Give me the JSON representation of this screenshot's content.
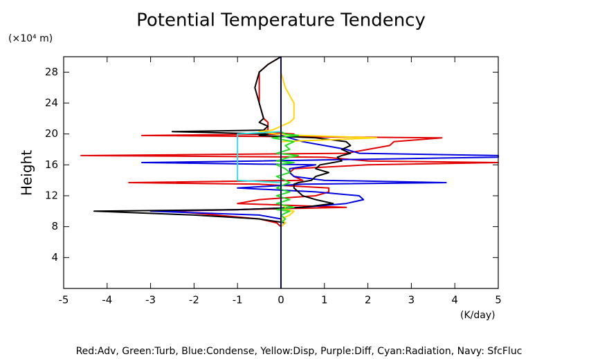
{
  "chart_data": {
    "type": "line",
    "title": "Potential Temperature Tendency",
    "y_label": "Height",
    "y_unit": "(×10⁴ m)",
    "x_unit": "(K/day)",
    "legend_text": "Red:Adv, Green:Turb, Blue:Condense, Yellow:Disp, Purple:Diff, Cyan:Radiation, Navy: SfcFluc",
    "xlim": [
      -5,
      5
    ],
    "xticks": [
      -5,
      -4,
      -3,
      -2,
      -1,
      0,
      1,
      2,
      3,
      4,
      5
    ],
    "ylim": [
      0,
      30
    ],
    "yticks": [
      4,
      8,
      12,
      16,
      20,
      24,
      28
    ],
    "y": [
      0,
      2,
      4,
      6,
      8,
      8.5,
      9,
      9.5,
      10,
      10.2,
      10.5,
      11,
      11.5,
      12,
      12.5,
      13,
      13.5,
      13.7,
      14,
      14.5,
      15,
      15.5,
      16,
      16.3,
      16.5,
      17,
      17.2,
      17.5,
      18,
      18.5,
      19,
      19.5,
      19.8,
      20,
      20.3,
      20.5,
      21,
      21.5,
      22,
      24,
      26,
      28,
      29,
      30
    ],
    "series": [
      {
        "color": "#e00000",
        "values": [
          0,
          0,
          0,
          0,
          0,
          -0.1,
          -0.5,
          -1.5,
          -2.5,
          -1,
          1.5,
          -1,
          -0.5,
          0.8,
          1.1,
          1.1,
          -0.5,
          -3.5,
          0.5,
          0.3,
          0.2,
          0.3,
          2,
          5,
          2,
          1,
          -4.6,
          1.5,
          2,
          2.5,
          2.6,
          3.7,
          -3.2,
          0.3,
          -0.5,
          -0.3,
          -0.3,
          -0.3,
          -0.4,
          -0.5,
          -0.5,
          -0.5,
          -0.3,
          0
        ]
      },
      {
        "color": "#0000dd",
        "values": [
          0,
          0,
          0,
          0,
          0,
          0,
          0,
          -0.5,
          -3,
          -1,
          0.5,
          1.5,
          1.9,
          1.8,
          0.8,
          -1,
          0.5,
          3.8,
          1,
          0.3,
          0.2,
          0.2,
          0.8,
          -3.2,
          -0.5,
          5,
          5,
          1.8,
          1.5,
          1,
          0.5,
          0.2,
          0,
          0,
          0,
          0,
          0,
          0,
          0,
          0,
          0,
          0,
          0,
          0
        ]
      },
      {
        "color": "#000000",
        "values": [
          0,
          0,
          0,
          0,
          0,
          0.1,
          -0.5,
          -2,
          -4.3,
          -1,
          0.5,
          1.2,
          0.8,
          0.5,
          0.4,
          0.3,
          0.3,
          0.4,
          0.7,
          0.8,
          1.1,
          0.8,
          0.9,
          1.2,
          1.4,
          1.3,
          1.4,
          1.6,
          1.4,
          1.6,
          1.5,
          0.8,
          -0.5,
          -0.3,
          -2.5,
          -0.4,
          -0.3,
          -0.5,
          -0.4,
          -0.5,
          -0.6,
          -0.5,
          -0.3,
          0
        ]
      },
      {
        "color": "#ffd800",
        "values": [
          0,
          0,
          0,
          0,
          0,
          0.1,
          0,
          0.2,
          0.3,
          0.1,
          0.1,
          0,
          0,
          0,
          0,
          0,
          0,
          0,
          0,
          0,
          0,
          0,
          0,
          0,
          0,
          0,
          0,
          0,
          0,
          0,
          0,
          2.2,
          0.5,
          -0.1,
          -0.5,
          -0.2,
          0,
          0.2,
          0.3,
          0.3,
          0.1,
          0,
          0,
          0
        ]
      },
      {
        "color": "#22dd22",
        "values": [
          0,
          0,
          0,
          0,
          0,
          0,
          0.1,
          0,
          0.2,
          -0.1,
          0.3,
          -0.1,
          0.2,
          -0.1,
          0.2,
          -0.1,
          0.1,
          0.2,
          0.1,
          -0.1,
          0.2,
          0.1,
          -0.1,
          0.3,
          -0.1,
          0.2,
          0.4,
          -0.1,
          0.2,
          0.1,
          0.3,
          -0.2,
          0.4,
          0.1,
          0,
          0,
          0,
          0,
          0,
          0,
          0,
          0,
          0,
          0
        ]
      },
      {
        "color": "#33dddd",
        "values": [
          0,
          0,
          0,
          0,
          0,
          0,
          0,
          0,
          0,
          0,
          0,
          0,
          0,
          0,
          0,
          0,
          0,
          0,
          -1,
          -1,
          -1,
          -1,
          -1,
          -1,
          -1,
          -1,
          -1,
          -1,
          -1,
          -1,
          -1,
          -1,
          -1,
          -1,
          0,
          0,
          0,
          0,
          0,
          0,
          0,
          0,
          0,
          0
        ]
      },
      {
        "color": "#000080",
        "values": [
          0,
          0,
          0,
          0,
          0,
          0,
          0,
          0,
          0,
          0,
          0,
          0,
          0,
          0,
          0,
          0,
          0,
          0,
          0,
          0,
          0,
          0,
          0,
          0,
          0,
          0,
          0,
          0,
          0,
          0,
          0,
          0,
          0,
          0,
          0,
          0,
          0,
          0,
          0,
          0,
          0,
          0,
          0,
          0
        ]
      }
    ]
  }
}
